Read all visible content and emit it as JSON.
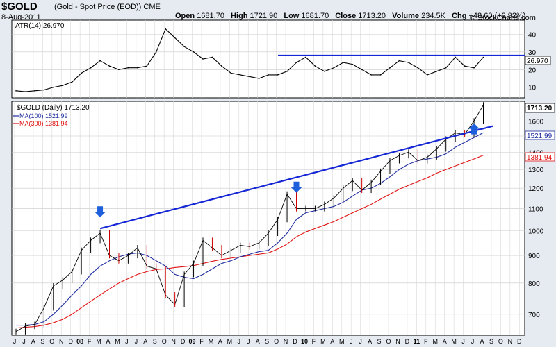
{
  "header": {
    "symbol": "$GOLD",
    "description": "(Gold - Spot Price (EOD))",
    "exchange": "CME",
    "date": "8-Aug-2011",
    "open_label": "Open",
    "open": "1681.70",
    "high_label": "High",
    "high": "1721.90",
    "low_label": "Low",
    "low": "1681.70",
    "close_label": "Close",
    "close": "1713.20",
    "volume_label": "Volume",
    "volume": "234.5K",
    "chg_label": "Chg",
    "chg": "+48.60 (+2.92%)",
    "brand": "© StockCharts.com"
  },
  "colors": {
    "price": "#000000",
    "ma100": "#1f2d9f",
    "ma300": "#e01010",
    "trendline": "#1426d6",
    "arrow": "#1e5fdc",
    "up_candle": "#000000",
    "down_candle": "#d10000"
  },
  "chart_data": [
    {
      "type": "line",
      "title": "ATR(14) 26.970",
      "indicator": "ATR(14)",
      "last_value": "26.970",
      "y_ticks": [
        10,
        20,
        30,
        40
      ],
      "ylim": [
        4,
        48
      ],
      "grid": true,
      "x": [
        "2007-06",
        "2007-07",
        "2007-08",
        "2007-09",
        "2007-10",
        "2007-11",
        "2007-12",
        "2008-01",
        "2008-02",
        "2008-03",
        "2008-04",
        "2008-05",
        "2008-06",
        "2008-07",
        "2008-08",
        "2008-09",
        "2008-10",
        "2008-11",
        "2008-12",
        "2009-01",
        "2009-02",
        "2009-03",
        "2009-04",
        "2009-05",
        "2009-06",
        "2009-07",
        "2009-08",
        "2009-09",
        "2009-10",
        "2009-11",
        "2009-12",
        "2010-01",
        "2010-02",
        "2010-03",
        "2010-04",
        "2010-05",
        "2010-06",
        "2010-07",
        "2010-08",
        "2010-09",
        "2010-10",
        "2010-11",
        "2010-12",
        "2011-01",
        "2011-02",
        "2011-03",
        "2011-04",
        "2011-05",
        "2011-06",
        "2011-07",
        "2011-08"
      ],
      "series": [
        {
          "values": [
            8,
            7.5,
            8,
            8.5,
            10,
            11,
            13,
            18,
            21,
            25,
            22,
            20,
            21,
            21,
            22,
            30,
            43,
            38,
            33,
            30,
            26,
            27,
            22,
            18,
            17,
            16,
            15,
            17,
            17,
            19,
            24,
            27,
            22,
            19,
            21,
            24,
            23,
            20,
            17,
            17,
            21,
            25,
            24,
            21,
            17,
            19,
            21,
            27,
            22,
            21,
            26.97
          ]
        }
      ],
      "annotations": [
        {
          "type": "horizontal-line",
          "value": 28
        }
      ]
    },
    {
      "type": "line",
      "title": "$GOLD (Daily) 1713.20",
      "price_label": "$GOLD (Daily)",
      "last_price": "1713.20",
      "ma100_label": "MA(100)",
      "ma100_value": "1521.99",
      "ma300_label": "MA(300)",
      "ma300_value": "1381.94",
      "y_ticks": [
        700,
        800,
        900,
        1000,
        1100,
        1200,
        1300,
        1400,
        1500,
        1600
      ],
      "ylim": [
        640,
        1740
      ],
      "y_scale": "log",
      "grid": true,
      "x_tick_labels": [
        "J",
        "J",
        "A",
        "S",
        "O",
        "N",
        "D",
        "08",
        "F",
        "M",
        "A",
        "M",
        "J",
        "J",
        "A",
        "S",
        "O",
        "N",
        "D",
        "09",
        "F",
        "M",
        "A",
        "M",
        "J",
        "J",
        "A",
        "S",
        "O",
        "N",
        "D",
        "10",
        "F",
        "M",
        "A",
        "M",
        "J",
        "J",
        "A",
        "S",
        "O",
        "N",
        "D",
        "11",
        "F",
        "M",
        "A",
        "M",
        "J",
        "J",
        "A",
        "S",
        "O",
        "N",
        "D"
      ],
      "x": [
        "2007-06",
        "2007-07",
        "2007-08",
        "2007-09",
        "2007-10",
        "2007-11",
        "2007-12",
        "2008-01",
        "2008-02",
        "2008-03",
        "2008-04",
        "2008-05",
        "2008-06",
        "2008-07",
        "2008-08",
        "2008-09",
        "2008-10",
        "2008-11",
        "2008-12",
        "2009-01",
        "2009-02",
        "2009-03",
        "2009-04",
        "2009-05",
        "2009-06",
        "2009-07",
        "2009-08",
        "2009-09",
        "2009-10",
        "2009-11",
        "2009-12",
        "2010-01",
        "2010-02",
        "2010-03",
        "2010-04",
        "2010-05",
        "2010-06",
        "2010-07",
        "2010-08",
        "2010-09",
        "2010-10",
        "2010-11",
        "2010-12",
        "2011-01",
        "2011-02",
        "2011-03",
        "2011-04",
        "2011-05",
        "2011-06",
        "2011-07",
        "2011-08"
      ],
      "series": [
        {
          "name": "$GOLD (Daily)",
          "values": [
            650,
            665,
            670,
            720,
            790,
            810,
            840,
            920,
            960,
            990,
            900,
            880,
            900,
            930,
            860,
            850,
            760,
            730,
            830,
            870,
            960,
            930,
            900,
            920,
            940,
            935,
            950,
            990,
            1050,
            1170,
            1100,
            1100,
            1100,
            1120,
            1150,
            1200,
            1240,
            1190,
            1230,
            1290,
            1350,
            1380,
            1400,
            1350,
            1370,
            1420,
            1480,
            1520,
            1510,
            1600,
            1713.2
          ]
        },
        {
          "name": "MA(100)",
          "values": [
            668,
            668,
            670,
            678,
            700,
            728,
            760,
            790,
            830,
            860,
            880,
            895,
            905,
            910,
            900,
            880,
            860,
            830,
            820,
            815,
            830,
            850,
            870,
            880,
            895,
            905,
            915,
            920,
            950,
            990,
            1050,
            1080,
            1090,
            1100,
            1110,
            1130,
            1160,
            1190,
            1200,
            1225,
            1260,
            1300,
            1330,
            1350,
            1360,
            1370,
            1390,
            1430,
            1460,
            1490,
            1522
          ]
        },
        {
          "name": "MA(300)",
          "values": [
            660,
            662,
            664,
            668,
            675,
            685,
            700,
            720,
            740,
            760,
            780,
            800,
            815,
            830,
            840,
            848,
            850,
            855,
            858,
            862,
            870,
            878,
            885,
            890,
            895,
            900,
            905,
            910,
            925,
            945,
            975,
            995,
            1010,
            1025,
            1040,
            1060,
            1080,
            1100,
            1120,
            1145,
            1170,
            1195,
            1215,
            1235,
            1255,
            1280,
            1300,
            1320,
            1340,
            1360,
            1382
          ]
        }
      ],
      "annotations": [
        {
          "type": "trendline",
          "from": [
            "2008-03",
            1010
          ],
          "to": [
            "2011-09",
            1565
          ]
        },
        {
          "type": "arrow",
          "direction": "down",
          "x": "2008-03"
        },
        {
          "type": "arrow",
          "direction": "down",
          "x": "2009-12"
        },
        {
          "type": "arrow",
          "direction": "up",
          "x": "2011-07"
        }
      ]
    }
  ]
}
